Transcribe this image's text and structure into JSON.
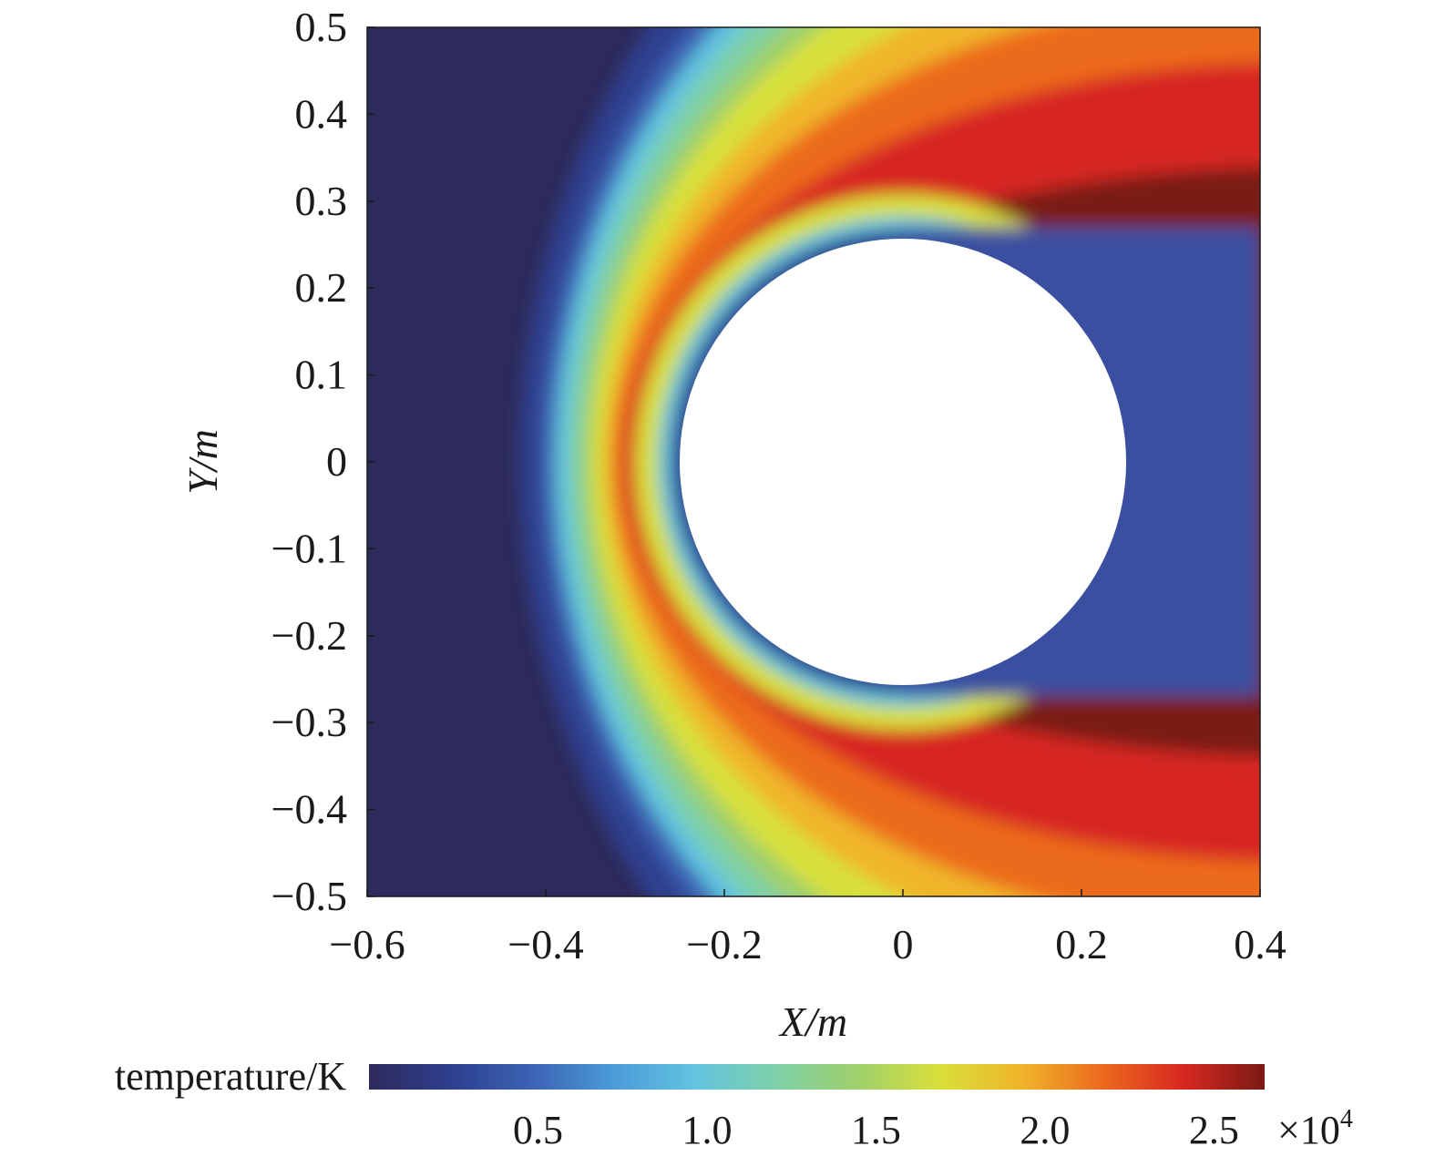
{
  "chart_data": {
    "type": "heatmap",
    "title": "",
    "xlabel": "X/m",
    "ylabel": "Y/m",
    "xlim": [
      -0.6,
      0.4
    ],
    "ylim": [
      -0.5,
      0.5
    ],
    "x_ticks": [
      "−0.6",
      "−0.4",
      "−0.2",
      "0",
      "0.2",
      "0.4"
    ],
    "x_tick_values": [
      -0.6,
      -0.4,
      -0.2,
      0,
      0.2,
      0.4
    ],
    "y_ticks": [
      "0.5",
      "0.4",
      "0.3",
      "0.2",
      "0.1",
      "0",
      "−0.1",
      "−0.2",
      "−0.3",
      "−0.4",
      "−0.5"
    ],
    "y_tick_values": [
      0.5,
      0.4,
      0.3,
      0.2,
      0.1,
      0,
      -0.1,
      -0.2,
      -0.3,
      -0.4,
      -0.5
    ],
    "body": {
      "shape": "circle",
      "center": [
        0,
        0
      ],
      "radius": 0.25
    },
    "field": {
      "quantity": "temperature",
      "freestream_value": 300,
      "peak_value": 27000,
      "peak_location": [
        -0.34,
        0
      ],
      "shock_standoff_x": -0.4,
      "wake_value": 3500
    },
    "colorbar": {
      "label": "temperature/K",
      "ticks": [
        "0.5",
        "1.0",
        "1.5",
        "2.0",
        "2.5"
      ],
      "tick_values": [
        0.5,
        1.0,
        1.5,
        2.0,
        2.5
      ],
      "range": [
        0,
        2.65
      ],
      "multiplier_base": "×10",
      "multiplier_exponent": "4",
      "colormap": [
        "#2d2a5c",
        "#2e3f8f",
        "#3c63b4",
        "#4a9bd8",
        "#62c4e0",
        "#7ed0a8",
        "#9fd06c",
        "#d8e03a",
        "#f0b52a",
        "#ec6a1e",
        "#d72820",
        "#7a1a14"
      ]
    }
  }
}
